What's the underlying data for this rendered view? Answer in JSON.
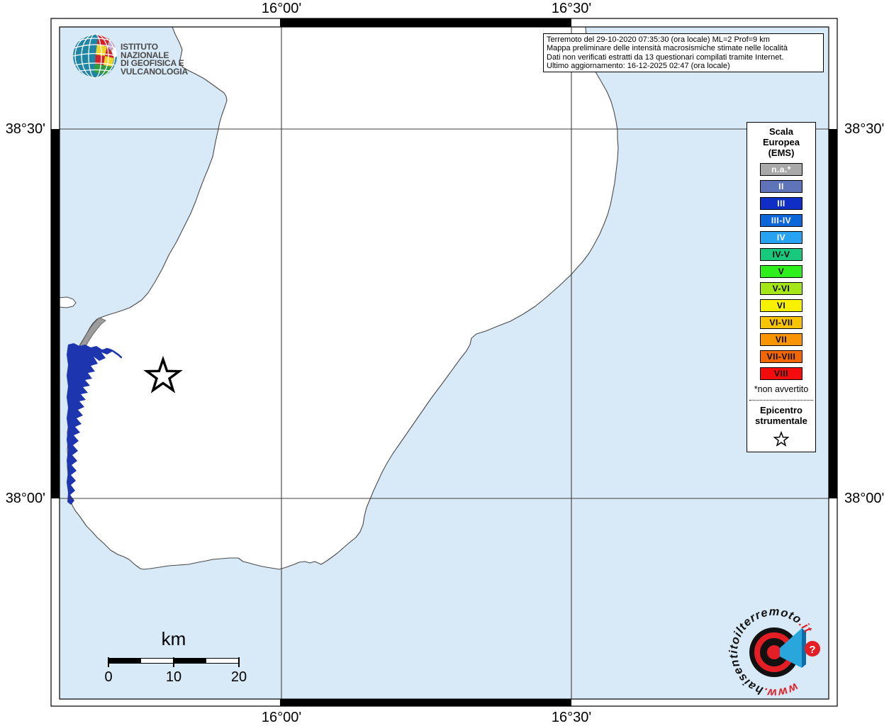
{
  "map": {
    "axis": {
      "top": [
        "16°00'",
        "16°30'"
      ],
      "bottom": [
        "16°00'",
        "16°30'"
      ],
      "left": [
        "38°30'",
        "38°00'"
      ],
      "right": [
        "38°30'",
        "38°00'"
      ]
    },
    "colors": {
      "sea": "#d8eaf7",
      "land": "#ffffff",
      "coastline": "#4a4a4a",
      "water_feature": "#1e35b0",
      "urban_area": "#9c9c9c",
      "gridline": "#3f3f3f"
    },
    "epicenter_symbol": "star"
  },
  "info_box": {
    "line1": "Terremoto del 29-10-2020 07:35:30 (ora locale) ML=2 Prof=9 km",
    "line2": "Mappa preliminare delle intensità macrosismiche stimate nelle località",
    "line3": "Dati non verificati estratti da 13 questionari compilati tramite Internet.",
    "line4": "Ultimo aggiornamento: 16-12-2025 02:47 (ora locale)"
  },
  "legend": {
    "title_lines": [
      "Scala",
      "Europea",
      "(EMS)"
    ],
    "items": [
      {
        "label": "n.a.*",
        "color": "#a9a9a9",
        "text_color": "#ffffff"
      },
      {
        "label": "II",
        "color": "#5f74b8",
        "text_color": "#ffffff"
      },
      {
        "label": "III",
        "color": "#0f2ec6",
        "text_color": "#ffffff"
      },
      {
        "label": "III-IV",
        "color": "#0a66d9",
        "text_color": "#ffffff"
      },
      {
        "label": "IV",
        "color": "#27a3f2",
        "text_color": "#ffffff"
      },
      {
        "label": "IV-V",
        "color": "#17c87d",
        "text_color": "#000000"
      },
      {
        "label": "V",
        "color": "#2eee1b",
        "text_color": "#000000"
      },
      {
        "label": "V-VI",
        "color": "#a4e617",
        "text_color": "#000000"
      },
      {
        "label": "VI",
        "color": "#f7f100",
        "text_color": "#000000"
      },
      {
        "label": "VI-VII",
        "color": "#f9c401",
        "text_color": "#000000"
      },
      {
        "label": "VII",
        "color": "#f99501",
        "text_color": "#000000"
      },
      {
        "label": "VII-VIII",
        "color": "#f26701",
        "text_color": "#000000"
      },
      {
        "label": "VIII",
        "color": "#f40b0e",
        "text_color": "#000000"
      }
    ],
    "footnote": "*non avvertito",
    "epicenter_label_lines": [
      "Epicentro",
      "strumentale"
    ]
  },
  "scalebar": {
    "title": "km",
    "ticks": [
      "0",
      "10",
      "20"
    ]
  },
  "ingv_logo": {
    "name_line1": "ISTITUTO NAZIONALE",
    "name_line2": "DI GEOFISICA E VULCANOLOGIA"
  },
  "hsit_logo": {
    "www": "www.",
    "name": "haisentito",
    "il": "il",
    "terremoto": "terremoto",
    "it": ".it",
    "question_mark": "?",
    "accent_red": "#e31e24",
    "accent_blue": "#29a6dc"
  }
}
